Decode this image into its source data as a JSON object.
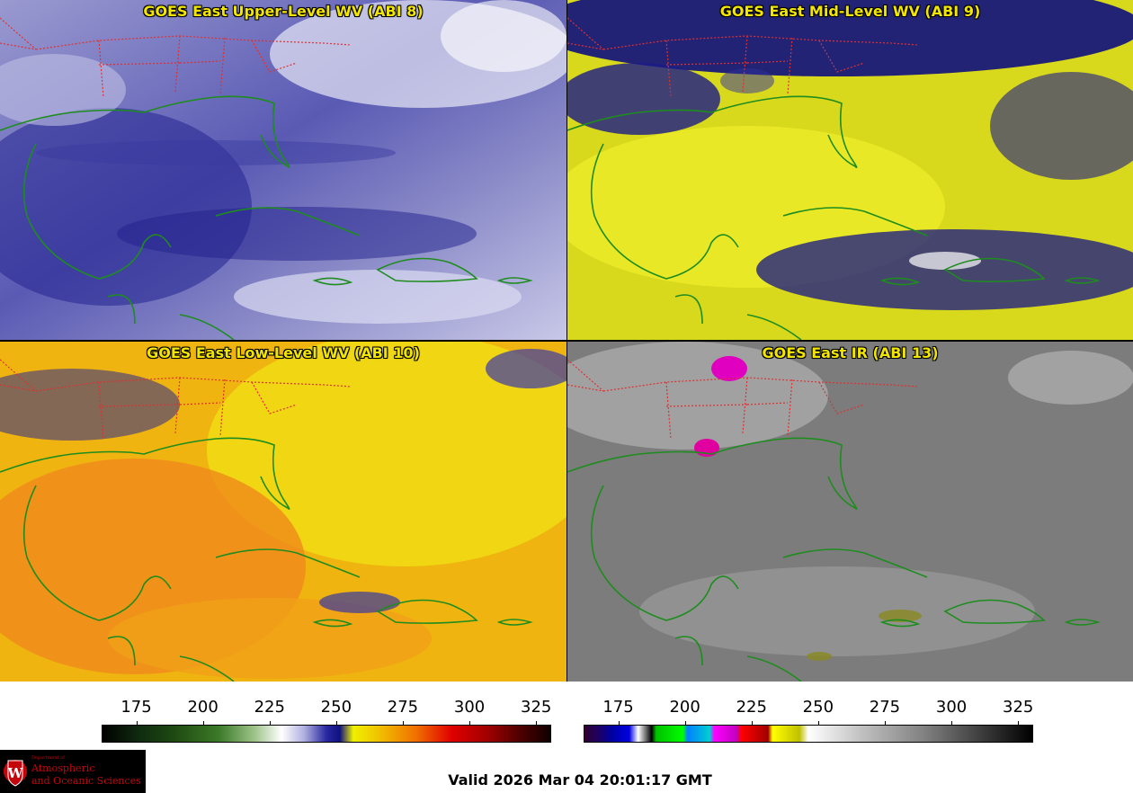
{
  "panels": [
    {
      "title": "GOES East Upper-Level WV (ABI 8)",
      "theme": "upper"
    },
    {
      "title": "GOES East Mid-Level WV (ABI 9)",
      "theme": "mid"
    },
    {
      "title": "GOES East Low-Level WV (ABI 10)",
      "theme": "low"
    },
    {
      "title": "GOES East IR (ABI 13)",
      "theme": "ir"
    }
  ],
  "colorbars": {
    "left": {
      "ticks": [
        "175",
        "200",
        "225",
        "250",
        "275",
        "300",
        "325"
      ],
      "range": [
        162,
        330
      ]
    },
    "right": {
      "ticks": [
        "175",
        "200",
        "225",
        "250",
        "275",
        "300",
        "325"
      ],
      "range": [
        162,
        330
      ]
    }
  },
  "logo": {
    "small_text": "Department of",
    "line1": "Atmospheric",
    "line2": "and Oceanic Sciences"
  },
  "valid_time": "Valid 2026 Mar 04 20:01:17 GMT",
  "colors": {
    "title_text": "#f2e600",
    "coastline": "#1e8c1e",
    "state_borders": "#e03030",
    "logo_red": "#c5050c"
  }
}
